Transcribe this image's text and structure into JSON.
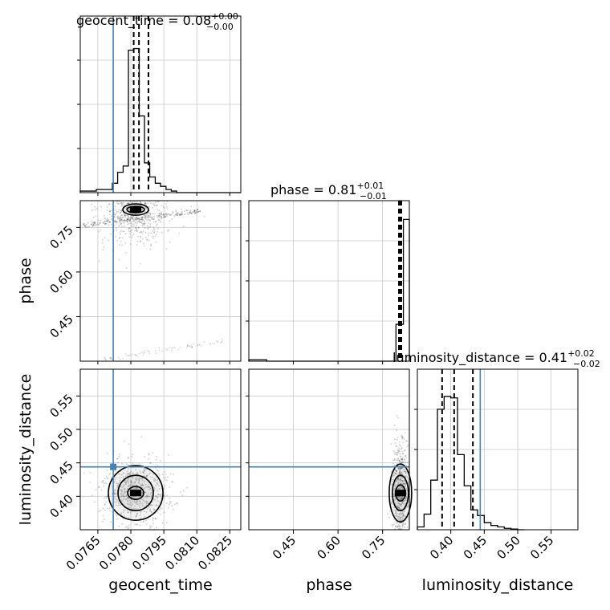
{
  "chart_data": {
    "type": "corner",
    "parameters": [
      "geocent_time",
      "phase",
      "luminosity_distance"
    ],
    "injection": {
      "geocent_time": 0.0772,
      "phase": null,
      "luminosity_distance": 0.444
    },
    "titles": [
      {
        "label": "geocent_time = 0.08",
        "sup": "+0.00",
        "sub": "−0.00"
      },
      {
        "label": "phase = 0.81",
        "sup": "+0.01",
        "sub": "−0.01"
      },
      {
        "label": "luminosity_distance = 0.41",
        "sup": "+0.02",
        "sub": "−0.02"
      }
    ],
    "axes": {
      "geocent_time": {
        "lim": [
          0.0757,
          0.083
        ],
        "ticks": [
          "0.0765",
          "0.0780",
          "0.0795",
          "0.0810",
          "0.0825"
        ]
      },
      "phase": {
        "lim": [
          0.3,
          0.84
        ],
        "ticks": [
          "0.45",
          "0.60",
          "0.75"
        ]
      },
      "luminosity_distance": {
        "lim": [
          0.35,
          0.59
        ],
        "ticks": [
          "0.40",
          "0.45",
          "0.50",
          "0.55"
        ]
      }
    },
    "histograms": {
      "geocent_time": {
        "edges": [
          0.0757,
          0.07643,
          0.07716,
          0.0774,
          0.07765,
          0.07789,
          0.07813,
          0.07838,
          0.07862,
          0.07886,
          0.07911,
          0.07935,
          0.0796,
          0.07984,
          0.08008,
          0.08033,
          0.083
        ],
        "counts": [
          0.01,
          0.02,
          0.06,
          0.13,
          0.17,
          0.91,
          0.92,
          0.49,
          0.19,
          0.1,
          0.06,
          0.04,
          0.02,
          0.01,
          0.0,
          0.0
        ],
        "quantiles": [
          0.07813,
          0.07837,
          0.0788
        ]
      },
      "phase": {
        "edges": [
          0.3,
          0.36,
          0.42,
          0.48,
          0.54,
          0.6,
          0.66,
          0.72,
          0.795,
          0.82,
          0.84
        ],
        "counts": [
          0.01,
          0.0,
          0.0,
          0.0,
          0.0,
          0.0,
          0.0,
          0.0,
          0.26,
          1.0
        ],
        "quantiles": [
          0.805,
          0.809,
          0.813
        ]
      },
      "luminosity_distance": {
        "edges": [
          0.35,
          0.36,
          0.37,
          0.38,
          0.39,
          0.4,
          0.41,
          0.42,
          0.43,
          0.44,
          0.45,
          0.46,
          0.47,
          0.48,
          0.49,
          0.5,
          0.51
        ],
        "counts": [
          0.02,
          0.11,
          0.35,
          0.85,
          0.94,
          0.93,
          0.53,
          0.31,
          0.14,
          0.1,
          0.05,
          0.03,
          0.02,
          0.01,
          0.005,
          0.0
        ],
        "quantiles": [
          0.387,
          0.405,
          0.433
        ]
      }
    },
    "pair_centers": {
      "phase_vs_geocent_time": [
        0.07822,
        0.81
      ],
      "luminosity_distance_vs_geocent_time": [
        0.07822,
        0.405
      ],
      "luminosity_distance_vs_phase": [
        0.81,
        0.405
      ]
    },
    "colors": {
      "injection": "#4682b4",
      "contour": "#000000",
      "grid": "#c8c8c8"
    }
  }
}
